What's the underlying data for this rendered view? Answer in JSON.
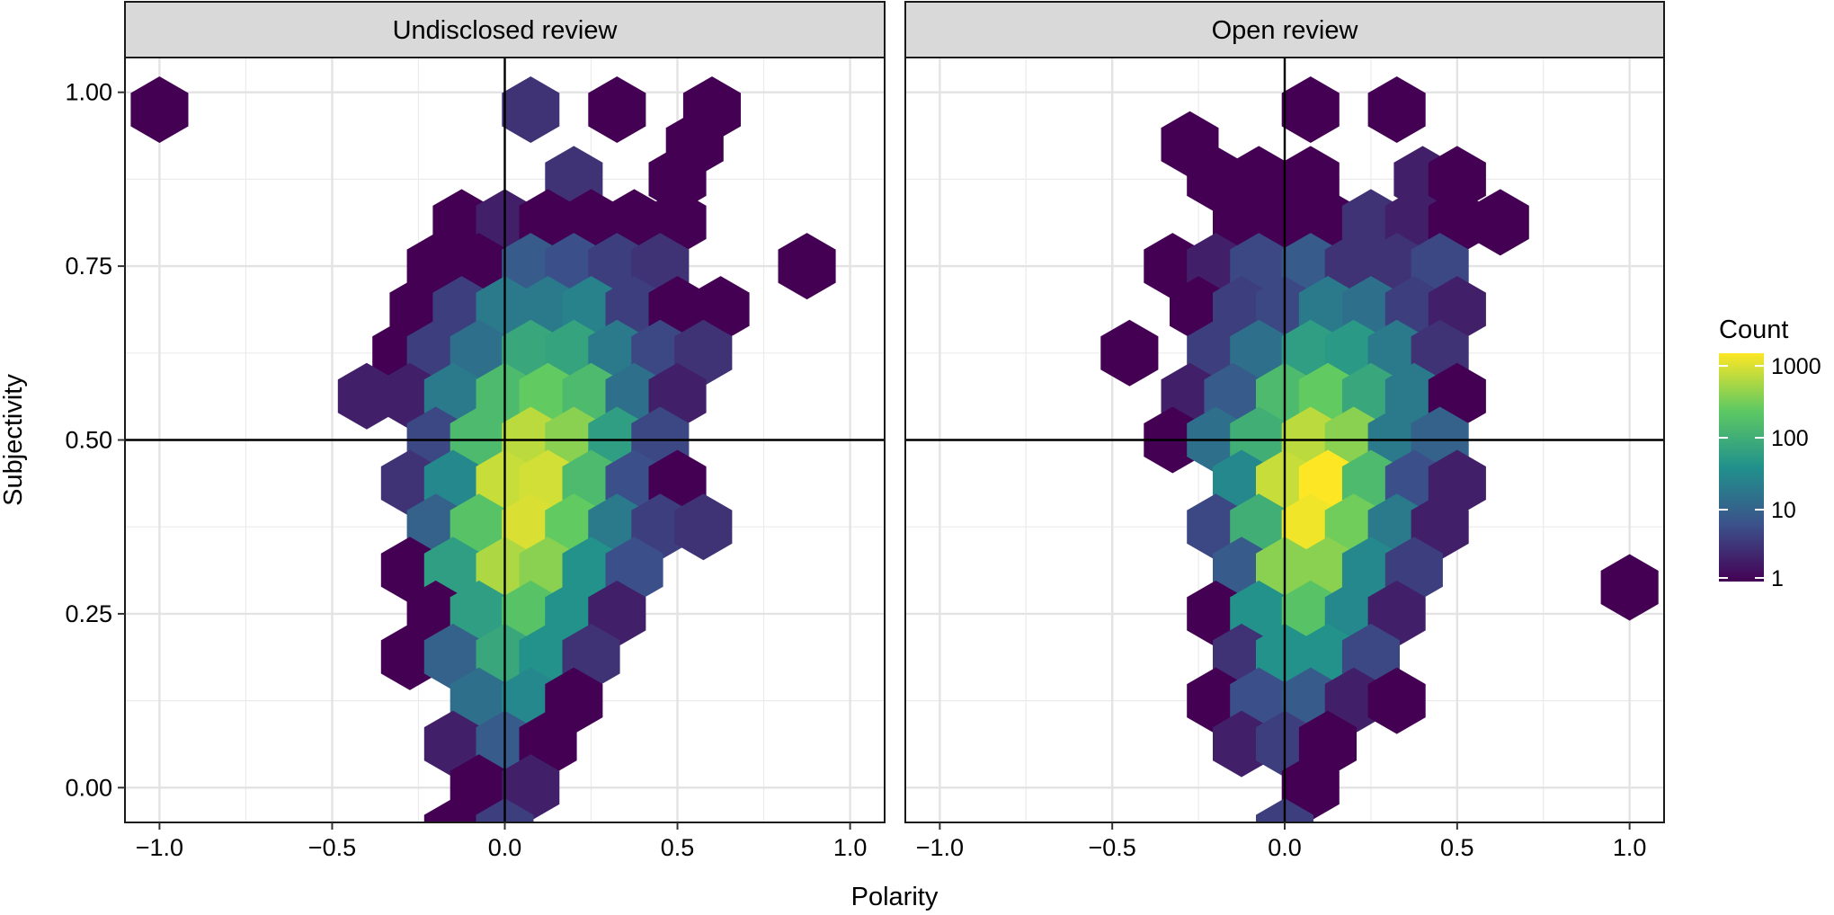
{
  "chart_data": {
    "type": "hexbin",
    "xlabel": "Polarity",
    "ylabel": "Subjectivity",
    "xlim": [
      -1.1,
      1.1
    ],
    "ylim": [
      -0.05,
      1.05
    ],
    "xticks": [
      -1.0,
      -0.5,
      0.0,
      0.5,
      1.0
    ],
    "xtick_labels": [
      "−1.0",
      "−0.5",
      "0.0",
      "0.5",
      "1.0"
    ],
    "yticks": [
      0.0,
      0.25,
      0.5,
      0.75,
      1.0
    ],
    "ytick_labels": [
      "0.00",
      "0.25",
      "0.50",
      "0.75",
      "1.00"
    ],
    "reference_lines": {
      "x": 0.0,
      "y": 0.5
    },
    "grid": true,
    "legend": {
      "title": "Count",
      "scale": "log10",
      "breaks": [
        1,
        10,
        100,
        1000
      ],
      "break_labels": [
        "1",
        "10",
        "100",
        "1000"
      ],
      "range": [
        1,
        1500
      ],
      "palette": "viridis",
      "position": "right"
    },
    "facets": [
      {
        "label": "Undisclosed review",
        "hexes": [
          {
            "x": -1.0,
            "y": 0.975,
            "count": 1
          },
          {
            "x": 0.075,
            "y": 0.975,
            "count": 3
          },
          {
            "x": 0.325,
            "y": 0.975,
            "count": 1
          },
          {
            "x": 0.6,
            "y": 0.975,
            "count": 1
          },
          {
            "x": 0.55,
            "y": 0.925,
            "count": 1
          },
          {
            "x": 0.2,
            "y": 0.875,
            "count": 3
          },
          {
            "x": 0.5,
            "y": 0.875,
            "count": 1
          },
          {
            "x": -0.125,
            "y": 0.813,
            "count": 1
          },
          {
            "x": 0.0,
            "y": 0.813,
            "count": 2
          },
          {
            "x": 0.125,
            "y": 0.813,
            "count": 1
          },
          {
            "x": 0.25,
            "y": 0.813,
            "count": 1
          },
          {
            "x": 0.375,
            "y": 0.813,
            "count": 1
          },
          {
            "x": 0.5,
            "y": 0.813,
            "count": 1
          },
          {
            "x": -0.2,
            "y": 0.75,
            "count": 1
          },
          {
            "x": -0.075,
            "y": 0.75,
            "count": 1
          },
          {
            "x": 0.075,
            "y": 0.75,
            "count": 8
          },
          {
            "x": 0.2,
            "y": 0.75,
            "count": 6
          },
          {
            "x": 0.325,
            "y": 0.75,
            "count": 4
          },
          {
            "x": 0.45,
            "y": 0.75,
            "count": 3
          },
          {
            "x": 0.875,
            "y": 0.75,
            "count": 1
          },
          {
            "x": -0.25,
            "y": 0.688,
            "count": 1
          },
          {
            "x": -0.125,
            "y": 0.688,
            "count": 4
          },
          {
            "x": 0.0,
            "y": 0.688,
            "count": 20
          },
          {
            "x": 0.125,
            "y": 0.688,
            "count": 20
          },
          {
            "x": 0.25,
            "y": 0.688,
            "count": 25
          },
          {
            "x": 0.375,
            "y": 0.688,
            "count": 4
          },
          {
            "x": 0.5,
            "y": 0.688,
            "count": 1
          },
          {
            "x": 0.625,
            "y": 0.688,
            "count": 1
          },
          {
            "x": -0.3,
            "y": 0.625,
            "count": 1
          },
          {
            "x": -0.2,
            "y": 0.625,
            "count": 4
          },
          {
            "x": -0.075,
            "y": 0.625,
            "count": 15
          },
          {
            "x": 0.075,
            "y": 0.625,
            "count": 80
          },
          {
            "x": 0.2,
            "y": 0.625,
            "count": 70
          },
          {
            "x": 0.325,
            "y": 0.625,
            "count": 20
          },
          {
            "x": 0.45,
            "y": 0.625,
            "count": 5
          },
          {
            "x": 0.575,
            "y": 0.625,
            "count": 3
          },
          {
            "x": -0.4,
            "y": 0.563,
            "count": 2
          },
          {
            "x": -0.275,
            "y": 0.563,
            "count": 2
          },
          {
            "x": -0.15,
            "y": 0.563,
            "count": 20
          },
          {
            "x": 0.0,
            "y": 0.563,
            "count": 150
          },
          {
            "x": 0.125,
            "y": 0.563,
            "count": 250
          },
          {
            "x": 0.25,
            "y": 0.563,
            "count": 150
          },
          {
            "x": 0.375,
            "y": 0.563,
            "count": 15
          },
          {
            "x": 0.5,
            "y": 0.563,
            "count": 2
          },
          {
            "x": -0.2,
            "y": 0.5,
            "count": 5
          },
          {
            "x": -0.075,
            "y": 0.5,
            "count": 150
          },
          {
            "x": 0.075,
            "y": 0.5,
            "count": 700
          },
          {
            "x": 0.2,
            "y": 0.5,
            "count": 400
          },
          {
            "x": 0.325,
            "y": 0.5,
            "count": 60
          },
          {
            "x": 0.45,
            "y": 0.5,
            "count": 5
          },
          {
            "x": -0.275,
            "y": 0.438,
            "count": 3
          },
          {
            "x": -0.15,
            "y": 0.438,
            "count": 30
          },
          {
            "x": 0.0,
            "y": 0.438,
            "count": 800
          },
          {
            "x": 0.125,
            "y": 0.438,
            "count": 900
          },
          {
            "x": 0.25,
            "y": 0.438,
            "count": 150
          },
          {
            "x": 0.375,
            "y": 0.438,
            "count": 6
          },
          {
            "x": 0.5,
            "y": 0.438,
            "count": 1
          },
          {
            "x": -0.2,
            "y": 0.375,
            "count": 10
          },
          {
            "x": -0.075,
            "y": 0.375,
            "count": 200
          },
          {
            "x": 0.075,
            "y": 0.375,
            "count": 1000
          },
          {
            "x": 0.2,
            "y": 0.375,
            "count": 250
          },
          {
            "x": 0.325,
            "y": 0.375,
            "count": 20
          },
          {
            "x": 0.45,
            "y": 0.375,
            "count": 4
          },
          {
            "x": 0.575,
            "y": 0.375,
            "count": 3
          },
          {
            "x": -0.275,
            "y": 0.313,
            "count": 1
          },
          {
            "x": -0.15,
            "y": 0.313,
            "count": 60
          },
          {
            "x": 0.0,
            "y": 0.313,
            "count": 600
          },
          {
            "x": 0.125,
            "y": 0.313,
            "count": 400
          },
          {
            "x": 0.25,
            "y": 0.313,
            "count": 40
          },
          {
            "x": 0.375,
            "y": 0.313,
            "count": 6
          },
          {
            "x": -0.2,
            "y": 0.25,
            "count": 1
          },
          {
            "x": -0.075,
            "y": 0.25,
            "count": 60
          },
          {
            "x": 0.075,
            "y": 0.25,
            "count": 200
          },
          {
            "x": 0.2,
            "y": 0.25,
            "count": 40
          },
          {
            "x": 0.325,
            "y": 0.25,
            "count": 2
          },
          {
            "x": -0.275,
            "y": 0.188,
            "count": 1
          },
          {
            "x": -0.15,
            "y": 0.188,
            "count": 10
          },
          {
            "x": 0.0,
            "y": 0.188,
            "count": 80
          },
          {
            "x": 0.125,
            "y": 0.188,
            "count": 40
          },
          {
            "x": 0.25,
            "y": 0.188,
            "count": 3
          },
          {
            "x": -0.075,
            "y": 0.125,
            "count": 15
          },
          {
            "x": 0.075,
            "y": 0.125,
            "count": 30
          },
          {
            "x": 0.2,
            "y": 0.125,
            "count": 1
          },
          {
            "x": -0.15,
            "y": 0.063,
            "count": 2
          },
          {
            "x": 0.0,
            "y": 0.063,
            "count": 8
          },
          {
            "x": 0.125,
            "y": 0.063,
            "count": 1
          },
          {
            "x": -0.075,
            "y": 0.0,
            "count": 1
          },
          {
            "x": 0.075,
            "y": 0.0,
            "count": 2
          },
          {
            "x": -0.15,
            "y": -0.063,
            "count": 1
          },
          {
            "x": 0.0,
            "y": -0.063,
            "count": 4
          }
        ]
      },
      {
        "label": "Open review",
        "hexes": [
          {
            "x": 0.075,
            "y": 0.975,
            "count": 1
          },
          {
            "x": 0.325,
            "y": 0.975,
            "count": 1
          },
          {
            "x": -0.275,
            "y": 0.925,
            "count": 1
          },
          {
            "x": -0.2,
            "y": 0.875,
            "count": 1
          },
          {
            "x": -0.075,
            "y": 0.875,
            "count": 1
          },
          {
            "x": 0.075,
            "y": 0.875,
            "count": 1
          },
          {
            "x": 0.4,
            "y": 0.875,
            "count": 2
          },
          {
            "x": 0.5,
            "y": 0.875,
            "count": 1
          },
          {
            "x": -0.125,
            "y": 0.813,
            "count": 1
          },
          {
            "x": 0.0,
            "y": 0.813,
            "count": 1
          },
          {
            "x": 0.125,
            "y": 0.813,
            "count": 1
          },
          {
            "x": 0.25,
            "y": 0.813,
            "count": 3
          },
          {
            "x": 0.375,
            "y": 0.813,
            "count": 2
          },
          {
            "x": 0.5,
            "y": 0.813,
            "count": 1
          },
          {
            "x": 0.625,
            "y": 0.813,
            "count": 1
          },
          {
            "x": -0.325,
            "y": 0.75,
            "count": 1
          },
          {
            "x": -0.2,
            "y": 0.75,
            "count": 2
          },
          {
            "x": -0.075,
            "y": 0.75,
            "count": 5
          },
          {
            "x": 0.075,
            "y": 0.75,
            "count": 8
          },
          {
            "x": 0.2,
            "y": 0.75,
            "count": 3
          },
          {
            "x": 0.325,
            "y": 0.75,
            "count": 3
          },
          {
            "x": 0.45,
            "y": 0.75,
            "count": 5
          },
          {
            "x": -0.25,
            "y": 0.688,
            "count": 1
          },
          {
            "x": -0.125,
            "y": 0.688,
            "count": 4
          },
          {
            "x": 0.0,
            "y": 0.688,
            "count": 5
          },
          {
            "x": 0.125,
            "y": 0.688,
            "count": 20
          },
          {
            "x": 0.25,
            "y": 0.688,
            "count": 15
          },
          {
            "x": 0.375,
            "y": 0.688,
            "count": 4
          },
          {
            "x": 0.5,
            "y": 0.688,
            "count": 2
          },
          {
            "x": -0.45,
            "y": 0.625,
            "count": 1
          },
          {
            "x": -0.2,
            "y": 0.625,
            "count": 4
          },
          {
            "x": -0.075,
            "y": 0.625,
            "count": 15
          },
          {
            "x": 0.075,
            "y": 0.625,
            "count": 60
          },
          {
            "x": 0.2,
            "y": 0.625,
            "count": 50
          },
          {
            "x": 0.325,
            "y": 0.625,
            "count": 20
          },
          {
            "x": 0.45,
            "y": 0.625,
            "count": 3
          },
          {
            "x": -0.275,
            "y": 0.563,
            "count": 2
          },
          {
            "x": -0.15,
            "y": 0.563,
            "count": 8
          },
          {
            "x": 0.0,
            "y": 0.563,
            "count": 150
          },
          {
            "x": 0.125,
            "y": 0.563,
            "count": 250
          },
          {
            "x": 0.25,
            "y": 0.563,
            "count": 80
          },
          {
            "x": 0.375,
            "y": 0.563,
            "count": 20
          },
          {
            "x": 0.5,
            "y": 0.563,
            "count": 1
          },
          {
            "x": -0.325,
            "y": 0.5,
            "count": 1
          },
          {
            "x": -0.2,
            "y": 0.5,
            "count": 15
          },
          {
            "x": -0.075,
            "y": 0.5,
            "count": 100
          },
          {
            "x": 0.075,
            "y": 0.5,
            "count": 700
          },
          {
            "x": 0.2,
            "y": 0.5,
            "count": 400
          },
          {
            "x": 0.325,
            "y": 0.5,
            "count": 20
          },
          {
            "x": 0.45,
            "y": 0.5,
            "count": 10
          },
          {
            "x": -0.125,
            "y": 0.438,
            "count": 30
          },
          {
            "x": 0.0,
            "y": 0.438,
            "count": 800
          },
          {
            "x": 0.125,
            "y": 0.438,
            "count": 1500
          },
          {
            "x": 0.25,
            "y": 0.438,
            "count": 150
          },
          {
            "x": 0.375,
            "y": 0.438,
            "count": 6
          },
          {
            "x": 0.5,
            "y": 0.438,
            "count": 2
          },
          {
            "x": -0.2,
            "y": 0.375,
            "count": 5
          },
          {
            "x": -0.075,
            "y": 0.375,
            "count": 100
          },
          {
            "x": 0.075,
            "y": 0.375,
            "count": 1300
          },
          {
            "x": 0.2,
            "y": 0.375,
            "count": 300
          },
          {
            "x": 0.325,
            "y": 0.375,
            "count": 20
          },
          {
            "x": 0.45,
            "y": 0.375,
            "count": 2
          },
          {
            "x": -0.125,
            "y": 0.313,
            "count": 8
          },
          {
            "x": 0.0,
            "y": 0.313,
            "count": 400
          },
          {
            "x": 0.125,
            "y": 0.313,
            "count": 400
          },
          {
            "x": 0.25,
            "y": 0.313,
            "count": 30
          },
          {
            "x": 0.375,
            "y": 0.313,
            "count": 4
          },
          {
            "x": 1.0,
            "y": 0.288,
            "count": 1
          },
          {
            "x": -0.2,
            "y": 0.25,
            "count": 1
          },
          {
            "x": -0.075,
            "y": 0.25,
            "count": 40
          },
          {
            "x": 0.075,
            "y": 0.25,
            "count": 200
          },
          {
            "x": 0.2,
            "y": 0.25,
            "count": 30
          },
          {
            "x": 0.325,
            "y": 0.25,
            "count": 2
          },
          {
            "x": -0.125,
            "y": 0.188,
            "count": 3
          },
          {
            "x": 0.0,
            "y": 0.188,
            "count": 40
          },
          {
            "x": 0.125,
            "y": 0.188,
            "count": 40
          },
          {
            "x": 0.25,
            "y": 0.188,
            "count": 5
          },
          {
            "x": -0.2,
            "y": 0.125,
            "count": 1
          },
          {
            "x": -0.075,
            "y": 0.125,
            "count": 6
          },
          {
            "x": 0.075,
            "y": 0.125,
            "count": 8
          },
          {
            "x": 0.2,
            "y": 0.125,
            "count": 2
          },
          {
            "x": 0.325,
            "y": 0.125,
            "count": 1
          },
          {
            "x": -0.125,
            "y": 0.063,
            "count": 2
          },
          {
            "x": 0.0,
            "y": 0.063,
            "count": 4
          },
          {
            "x": 0.125,
            "y": 0.063,
            "count": 1
          },
          {
            "x": 0.075,
            "y": 0.0,
            "count": 1
          },
          {
            "x": 0.0,
            "y": -0.063,
            "count": 4
          }
        ]
      }
    ]
  }
}
